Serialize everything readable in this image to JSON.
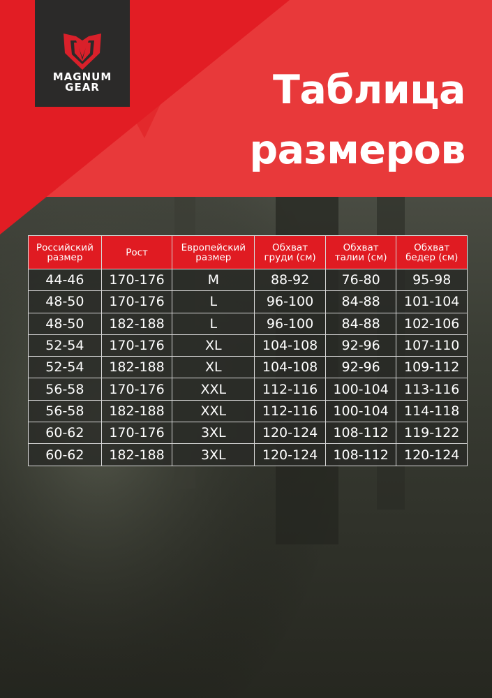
{
  "brand": {
    "line1": "MAGNUM",
    "line2": "GEAR",
    "logo_icon": "shield-m-icon"
  },
  "title": {
    "line1": "Таблица",
    "line2": "размеров"
  },
  "colors": {
    "accent": "#e01b22",
    "logo_bg": "#2b2a29"
  },
  "table": {
    "headers": [
      [
        "Российский",
        "размер"
      ],
      [
        "Рост"
      ],
      [
        "Европейский",
        "размер"
      ],
      [
        "Обхват",
        "груди (см)"
      ],
      [
        "Обхват",
        "талии (см)"
      ],
      [
        "Обхват",
        "бедер (см)"
      ]
    ],
    "rows": [
      [
        "44-46",
        "170-176",
        "M",
        "88-92",
        "76-80",
        "95-98"
      ],
      [
        "48-50",
        "170-176",
        "L",
        "96-100",
        "84-88",
        "101-104"
      ],
      [
        "48-50",
        "182-188",
        "L",
        "96-100",
        "84-88",
        "102-106"
      ],
      [
        "52-54",
        "170-176",
        "XL",
        "104-108",
        "92-96",
        "107-110"
      ],
      [
        "52-54",
        "182-188",
        "XL",
        "104-108",
        "92-96",
        "109-112"
      ],
      [
        "56-58",
        "170-176",
        "XXL",
        "112-116",
        "100-104",
        "113-116"
      ],
      [
        "56-58",
        "182-188",
        "XXL",
        "112-116",
        "100-104",
        "114-118"
      ],
      [
        "60-62",
        "170-176",
        "3XL",
        "120-124",
        "108-112",
        "119-122"
      ],
      [
        "60-62",
        "182-188",
        "3XL",
        "120-124",
        "108-112",
        "120-124"
      ]
    ]
  }
}
